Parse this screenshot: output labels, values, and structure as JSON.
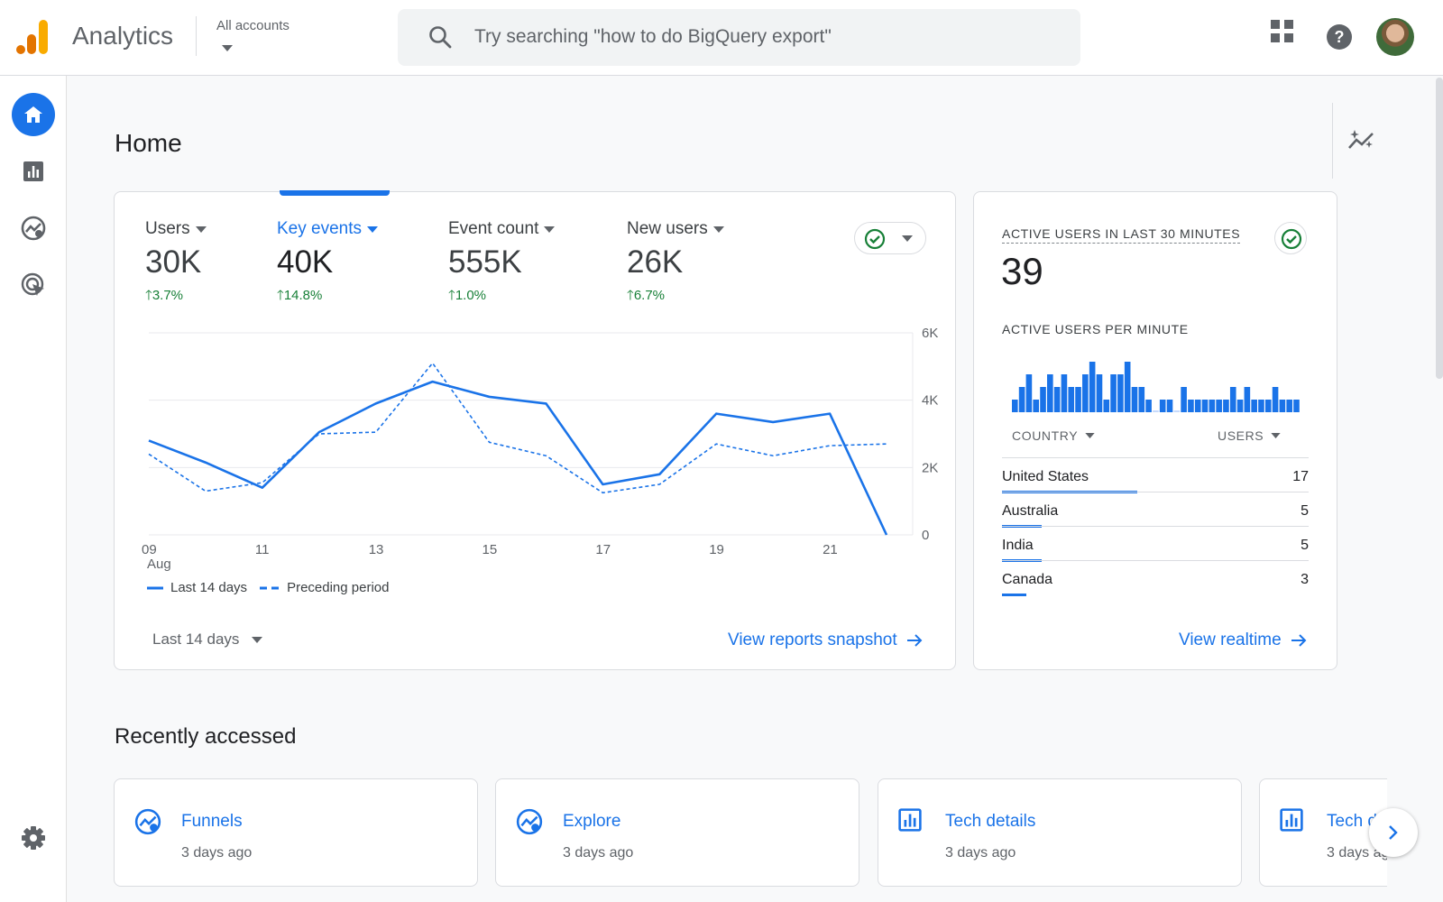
{
  "header": {
    "app_title": "Analytics",
    "accounts_label": "All accounts",
    "search_placeholder": "Try searching \"how to do BigQuery export\""
  },
  "icons": {
    "logo": "analytics-logo-icon",
    "search": "search-icon",
    "apps": "apps-grid-icon",
    "help": "help-icon",
    "home": "home-icon",
    "reports": "reports-icon",
    "explore": "explore-icon",
    "advertising": "advertising-icon",
    "settings": "gear-icon",
    "insights": "insights-icon"
  },
  "colors": {
    "accent": "#1a73e8",
    "positive": "#188038",
    "brand_orange": "#f9ab00",
    "brand_dark": "#e37400"
  },
  "main": {
    "page_title": "Home"
  },
  "overview": {
    "metrics": [
      {
        "label": "Users",
        "value": "30K",
        "change": "3.7%",
        "active": false
      },
      {
        "label": "Key events",
        "value": "40K",
        "change": "14.8%",
        "active": true
      },
      {
        "label": "Event count",
        "value": "555K",
        "change": "1.0%",
        "active": false
      },
      {
        "label": "New users",
        "value": "26K",
        "change": "6.7%",
        "active": false
      }
    ],
    "legend": {
      "current": "Last 14 days",
      "previous": "Preceding period"
    },
    "period_selector": "Last 14 days",
    "view_link": "View reports snapshot"
  },
  "chart_data": {
    "type": "line",
    "x": [
      9,
      10,
      11,
      12,
      13,
      14,
      15,
      16,
      17,
      18,
      19,
      20,
      21,
      22
    ],
    "x_tick_labels": [
      "09",
      "11",
      "13",
      "15",
      "17",
      "19",
      "21"
    ],
    "x_tick_values": [
      9,
      11,
      13,
      15,
      17,
      19,
      21
    ],
    "x_sublabel": "Aug",
    "y_tick_labels": [
      "0",
      "2K",
      "4K",
      "6K"
    ],
    "y_tick_values": [
      0,
      2000,
      4000,
      6000
    ],
    "ylim": [
      0,
      6000
    ],
    "xlim": [
      9,
      22
    ],
    "series": [
      {
        "name": "Last 14 days",
        "style": "solid",
        "values": [
          2800,
          2150,
          1400,
          3050,
          3900,
          4550,
          4100,
          3900,
          1500,
          1800,
          3600,
          3350,
          3600,
          0
        ]
      },
      {
        "name": "Preceding period",
        "style": "dashed",
        "values": [
          2400,
          1300,
          1550,
          3000,
          3050,
          5100,
          2750,
          2350,
          1250,
          1500,
          2700,
          2350,
          2650,
          2700
        ]
      }
    ],
    "grid": true,
    "y_axis_side": "right"
  },
  "realtime": {
    "title": "ACTIVE USERS IN LAST 30 MINUTES",
    "count": "39",
    "per_minute_label": "ACTIVE USERS PER MINUTE",
    "per_minute_values": [
      1,
      2,
      3,
      1,
      2,
      3,
      2,
      3,
      2,
      2,
      3,
      4,
      3,
      1,
      3,
      3,
      4,
      2,
      2,
      1,
      0,
      1,
      1,
      0,
      2,
      1,
      1,
      1,
      1,
      1,
      1,
      2,
      1,
      2,
      1,
      1,
      1,
      2,
      1,
      1,
      1
    ],
    "table_head": {
      "country": "COUNTRY",
      "users": "USERS"
    },
    "countries": [
      {
        "name": "United States",
        "users": "17",
        "share": 0.44
      },
      {
        "name": "Australia",
        "users": "5",
        "share": 0.13
      },
      {
        "name": "India",
        "users": "5",
        "share": 0.13
      },
      {
        "name": "Canada",
        "users": "3",
        "share": 0.08
      }
    ],
    "view_link": "View realtime"
  },
  "recent": {
    "title": "Recently accessed",
    "items": [
      {
        "name": "Funnels",
        "time": "3 days ago",
        "icon": "explore-icon"
      },
      {
        "name": "Explore",
        "time": "3 days ago",
        "icon": "explore-icon"
      },
      {
        "name": "Tech details",
        "time": "3 days ago",
        "icon": "reports-icon"
      },
      {
        "name": "Tech d",
        "time": "3 days ag",
        "icon": "reports-icon"
      }
    ]
  }
}
